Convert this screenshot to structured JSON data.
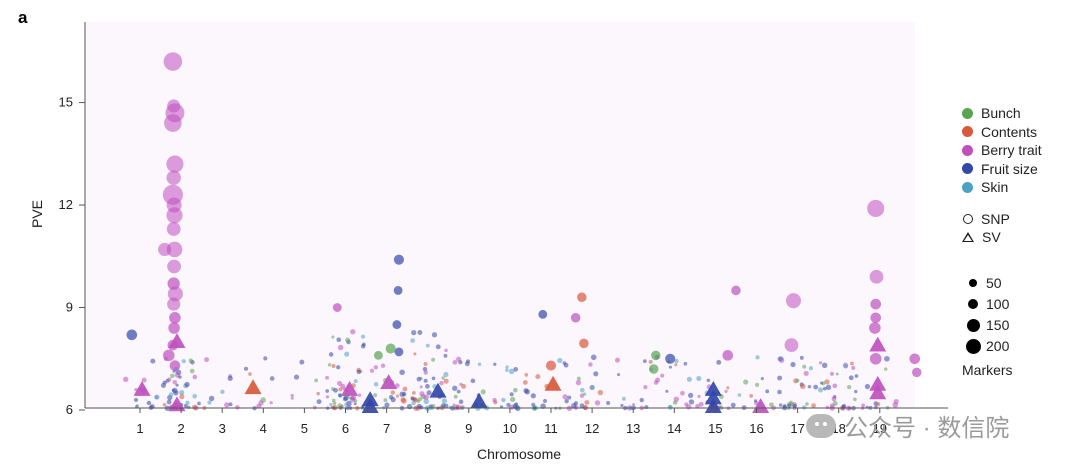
{
  "panel_label": "a",
  "watermark": "公众号 · 数信院",
  "colors": {
    "Bunch": "#5aa454",
    "Contents": "#d9573a",
    "Berry trait": "#bf4fbf",
    "Fruit size": "#3347a8",
    "Skin": "#4aa3c7",
    "axis": "#555555"
  },
  "legend": {
    "categories": [
      "Bunch",
      "Contents",
      "Berry trait",
      "Fruit size",
      "Skin"
    ],
    "shapes": [
      {
        "label": "SNP",
        "shape": "circle"
      },
      {
        "label": "SV",
        "shape": "triangle"
      }
    ],
    "sizes": [
      {
        "label": "50",
        "value": 50
      },
      {
        "label": "100",
        "value": 100
      },
      {
        "label": "150",
        "value": 150
      },
      {
        "label": "200",
        "value": 200
      }
    ],
    "size_title": "Markers"
  },
  "chart_data": {
    "type": "scatter",
    "title": "",
    "xlabel": "Chromosome",
    "ylabel": "PVE",
    "ylim": [
      6,
      17.3
    ],
    "yticks": [
      6,
      9,
      12,
      15
    ],
    "xlim": [
      0,
      20
    ],
    "xticks": [
      {
        "label": "1",
        "x": 1.0
      },
      {
        "label": "2",
        "x": 2.0
      },
      {
        "label": "3",
        "x": 3.0
      },
      {
        "label": "4",
        "x": 4.0
      },
      {
        "label": "5",
        "x": 5.0
      },
      {
        "label": "6",
        "x": 6.0
      },
      {
        "label": "7",
        "x": 7.0
      },
      {
        "label": "8",
        "x": 8.0
      },
      {
        "label": "9",
        "x": 9.0
      },
      {
        "label": "10",
        "x": 10.0
      },
      {
        "label": "11",
        "x": 11.0
      },
      {
        "label": "12",
        "x": 12.0
      },
      {
        "label": "13",
        "x": 13.0
      },
      {
        "label": "14",
        "x": 14.0
      },
      {
        "label": "15",
        "x": 15.0
      },
      {
        "label": "16",
        "x": 16.0
      },
      {
        "label": "17",
        "x": 17.0
      },
      {
        "label": "18",
        "x": 18.0
      },
      {
        "label": "19",
        "x": 19.0
      }
    ],
    "points": [
      {
        "x": 1.8,
        "y": 16.2,
        "trait": "Berry trait",
        "shape": "circle",
        "markers": 160
      },
      {
        "x": 1.85,
        "y": 14.7,
        "trait": "Berry trait",
        "shape": "circle",
        "markers": 170
      },
      {
        "x": 1.8,
        "y": 14.4,
        "trait": "Berry trait",
        "shape": "circle",
        "markers": 140
      },
      {
        "x": 1.82,
        "y": 14.9,
        "trait": "Berry trait",
        "shape": "circle",
        "markers": 60
      },
      {
        "x": 1.85,
        "y": 13.2,
        "trait": "Berry trait",
        "shape": "circle",
        "markers": 130
      },
      {
        "x": 1.82,
        "y": 12.8,
        "trait": "Berry trait",
        "shape": "circle",
        "markers": 80
      },
      {
        "x": 1.8,
        "y": 12.3,
        "trait": "Berry trait",
        "shape": "circle",
        "markers": 200
      },
      {
        "x": 1.83,
        "y": 12.0,
        "trait": "Berry trait",
        "shape": "circle",
        "markers": 90
      },
      {
        "x": 1.84,
        "y": 11.7,
        "trait": "Berry trait",
        "shape": "circle",
        "markers": 110
      },
      {
        "x": 1.82,
        "y": 11.3,
        "trait": "Berry trait",
        "shape": "circle",
        "markers": 70
      },
      {
        "x": 1.84,
        "y": 10.7,
        "trait": "Berry trait",
        "shape": "circle",
        "markers": 100
      },
      {
        "x": 1.6,
        "y": 10.7,
        "trait": "Berry trait",
        "shape": "circle",
        "markers": 60
      },
      {
        "x": 1.83,
        "y": 10.2,
        "trait": "Berry trait",
        "shape": "circle",
        "markers": 70
      },
      {
        "x": 1.82,
        "y": 9.7,
        "trait": "Berry trait",
        "shape": "circle",
        "markers": 50
      },
      {
        "x": 1.86,
        "y": 9.4,
        "trait": "Berry trait",
        "shape": "circle",
        "markers": 90
      },
      {
        "x": 1.82,
        "y": 9.1,
        "trait": "Berry trait",
        "shape": "circle",
        "markers": 60
      },
      {
        "x": 1.85,
        "y": 8.7,
        "trait": "Berry trait",
        "shape": "circle",
        "markers": 40
      },
      {
        "x": 1.83,
        "y": 8.4,
        "trait": "Berry trait",
        "shape": "circle",
        "markers": 40
      },
      {
        "x": 1.8,
        "y": 7.9,
        "trait": "Berry trait",
        "shape": "circle",
        "markers": 30
      },
      {
        "x": 1.7,
        "y": 7.6,
        "trait": "Berry trait",
        "shape": "circle",
        "markers": 40
      },
      {
        "x": 1.85,
        "y": 7.3,
        "trait": "Berry trait",
        "shape": "circle",
        "markers": 30
      },
      {
        "x": 0.8,
        "y": 8.2,
        "trait": "Fruit size",
        "shape": "circle",
        "markers": 30
      },
      {
        "x": 7.3,
        "y": 10.4,
        "trait": "Fruit size",
        "shape": "circle",
        "markers": 25
      },
      {
        "x": 7.28,
        "y": 9.5,
        "trait": "Fruit size",
        "shape": "circle",
        "markers": 15
      },
      {
        "x": 7.25,
        "y": 8.5,
        "trait": "Fruit size",
        "shape": "circle",
        "markers": 15
      },
      {
        "x": 7.3,
        "y": 7.7,
        "trait": "Fruit size",
        "shape": "circle",
        "markers": 15
      },
      {
        "x": 7.1,
        "y": 7.8,
        "trait": "Bunch",
        "shape": "circle",
        "markers": 25
      },
      {
        "x": 11.6,
        "y": 8.7,
        "trait": "Berry trait",
        "shape": "circle",
        "markers": 20
      },
      {
        "x": 11.75,
        "y": 9.3,
        "trait": "Contents",
        "shape": "circle",
        "markers": 20
      },
      {
        "x": 10.8,
        "y": 8.8,
        "trait": "Fruit size",
        "shape": "circle",
        "markers": 15
      },
      {
        "x": 13.55,
        "y": 7.6,
        "trait": "Bunch",
        "shape": "circle",
        "markers": 20
      },
      {
        "x": 13.5,
        "y": 7.2,
        "trait": "Bunch",
        "shape": "circle",
        "markers": 20
      },
      {
        "x": 13.9,
        "y": 7.5,
        "trait": "Fruit size",
        "shape": "circle",
        "markers": 25
      },
      {
        "x": 15.5,
        "y": 9.5,
        "trait": "Berry trait",
        "shape": "circle",
        "markers": 20
      },
      {
        "x": 16.9,
        "y": 9.2,
        "trait": "Berry trait",
        "shape": "circle",
        "markers": 90
      },
      {
        "x": 16.85,
        "y": 7.9,
        "trait": "Berry trait",
        "shape": "circle",
        "markers": 70
      },
      {
        "x": 18.9,
        "y": 11.9,
        "trait": "Berry trait",
        "shape": "circle",
        "markers": 130
      },
      {
        "x": 18.92,
        "y": 9.9,
        "trait": "Berry trait",
        "shape": "circle",
        "markers": 70
      },
      {
        "x": 18.9,
        "y": 9.1,
        "trait": "Berry trait",
        "shape": "circle",
        "markers": 30
      },
      {
        "x": 18.9,
        "y": 8.7,
        "trait": "Berry trait",
        "shape": "circle",
        "markers": 30
      },
      {
        "x": 18.88,
        "y": 8.4,
        "trait": "Berry trait",
        "shape": "circle",
        "markers": 40
      },
      {
        "x": 18.9,
        "y": 7.5,
        "trait": "Berry trait",
        "shape": "circle",
        "markers": 40
      },
      {
        "x": 19.85,
        "y": 7.5,
        "trait": "Berry trait",
        "shape": "circle",
        "markers": 30
      },
      {
        "x": 19.9,
        "y": 7.1,
        "trait": "Berry trait",
        "shape": "circle",
        "markers": 20
      },
      {
        "x": 5.8,
        "y": 9.0,
        "trait": "Berry trait",
        "shape": "circle",
        "markers": 15
      },
      {
        "x": 6.8,
        "y": 7.6,
        "trait": "Bunch",
        "shape": "circle",
        "markers": 15
      },
      {
        "x": 15.3,
        "y": 7.6,
        "trait": "Berry trait",
        "shape": "circle",
        "markers": 30
      },
      {
        "x": 11.0,
        "y": 7.3,
        "trait": "Contents",
        "shape": "circle",
        "markers": 25
      },
      {
        "x": 11.8,
        "y": 7.95,
        "trait": "Contents",
        "shape": "circle",
        "markers": 20
      },
      {
        "x": 1.05,
        "y": 6.6,
        "trait": "Berry trait",
        "shape": "triangle",
        "markers": 60
      },
      {
        "x": 1.9,
        "y": 8.0,
        "trait": "Berry trait",
        "shape": "triangle",
        "markers": 70
      },
      {
        "x": 1.9,
        "y": 6.15,
        "trait": "Berry trait",
        "shape": "triangle",
        "markers": 60
      },
      {
        "x": 3.75,
        "y": 6.65,
        "trait": "Contents",
        "shape": "triangle",
        "markers": 70
      },
      {
        "x": 6.1,
        "y": 6.6,
        "trait": "Berry trait",
        "shape": "triangle",
        "markers": 60
      },
      {
        "x": 6.6,
        "y": 6.3,
        "trait": "Fruit size",
        "shape": "triangle",
        "markers": 60
      },
      {
        "x": 6.6,
        "y": 6.1,
        "trait": "Fruit size",
        "shape": "triangle",
        "markers": 60
      },
      {
        "x": 7.05,
        "y": 6.8,
        "trait": "Berry trait",
        "shape": "triangle",
        "markers": 60
      },
      {
        "x": 8.25,
        "y": 6.55,
        "trait": "Fruit size",
        "shape": "triangle",
        "markers": 70
      },
      {
        "x": 9.25,
        "y": 6.25,
        "trait": "Fruit size",
        "shape": "triangle",
        "markers": 60
      },
      {
        "x": 11.05,
        "y": 6.75,
        "trait": "Contents",
        "shape": "triangle",
        "markers": 70
      },
      {
        "x": 14.95,
        "y": 6.6,
        "trait": "Fruit size",
        "shape": "triangle",
        "markers": 60
      },
      {
        "x": 14.95,
        "y": 6.35,
        "trait": "Fruit size",
        "shape": "triangle",
        "markers": 60
      },
      {
        "x": 14.95,
        "y": 6.1,
        "trait": "Fruit size",
        "shape": "triangle",
        "markers": 60
      },
      {
        "x": 16.1,
        "y": 6.1,
        "trait": "Berry trait",
        "shape": "triangle",
        "markers": 70
      },
      {
        "x": 18.95,
        "y": 7.9,
        "trait": "Berry trait",
        "shape": "triangle",
        "markers": 70
      },
      {
        "x": 18.95,
        "y": 6.75,
        "trait": "Berry trait",
        "shape": "triangle",
        "markers": 70
      },
      {
        "x": 18.95,
        "y": 6.5,
        "trait": "Berry trait",
        "shape": "triangle",
        "markers": 70
      }
    ],
    "small_points_note": "dense cloud of small SNP markers between PVE 6 and 7.5 across all chromosomes"
  }
}
